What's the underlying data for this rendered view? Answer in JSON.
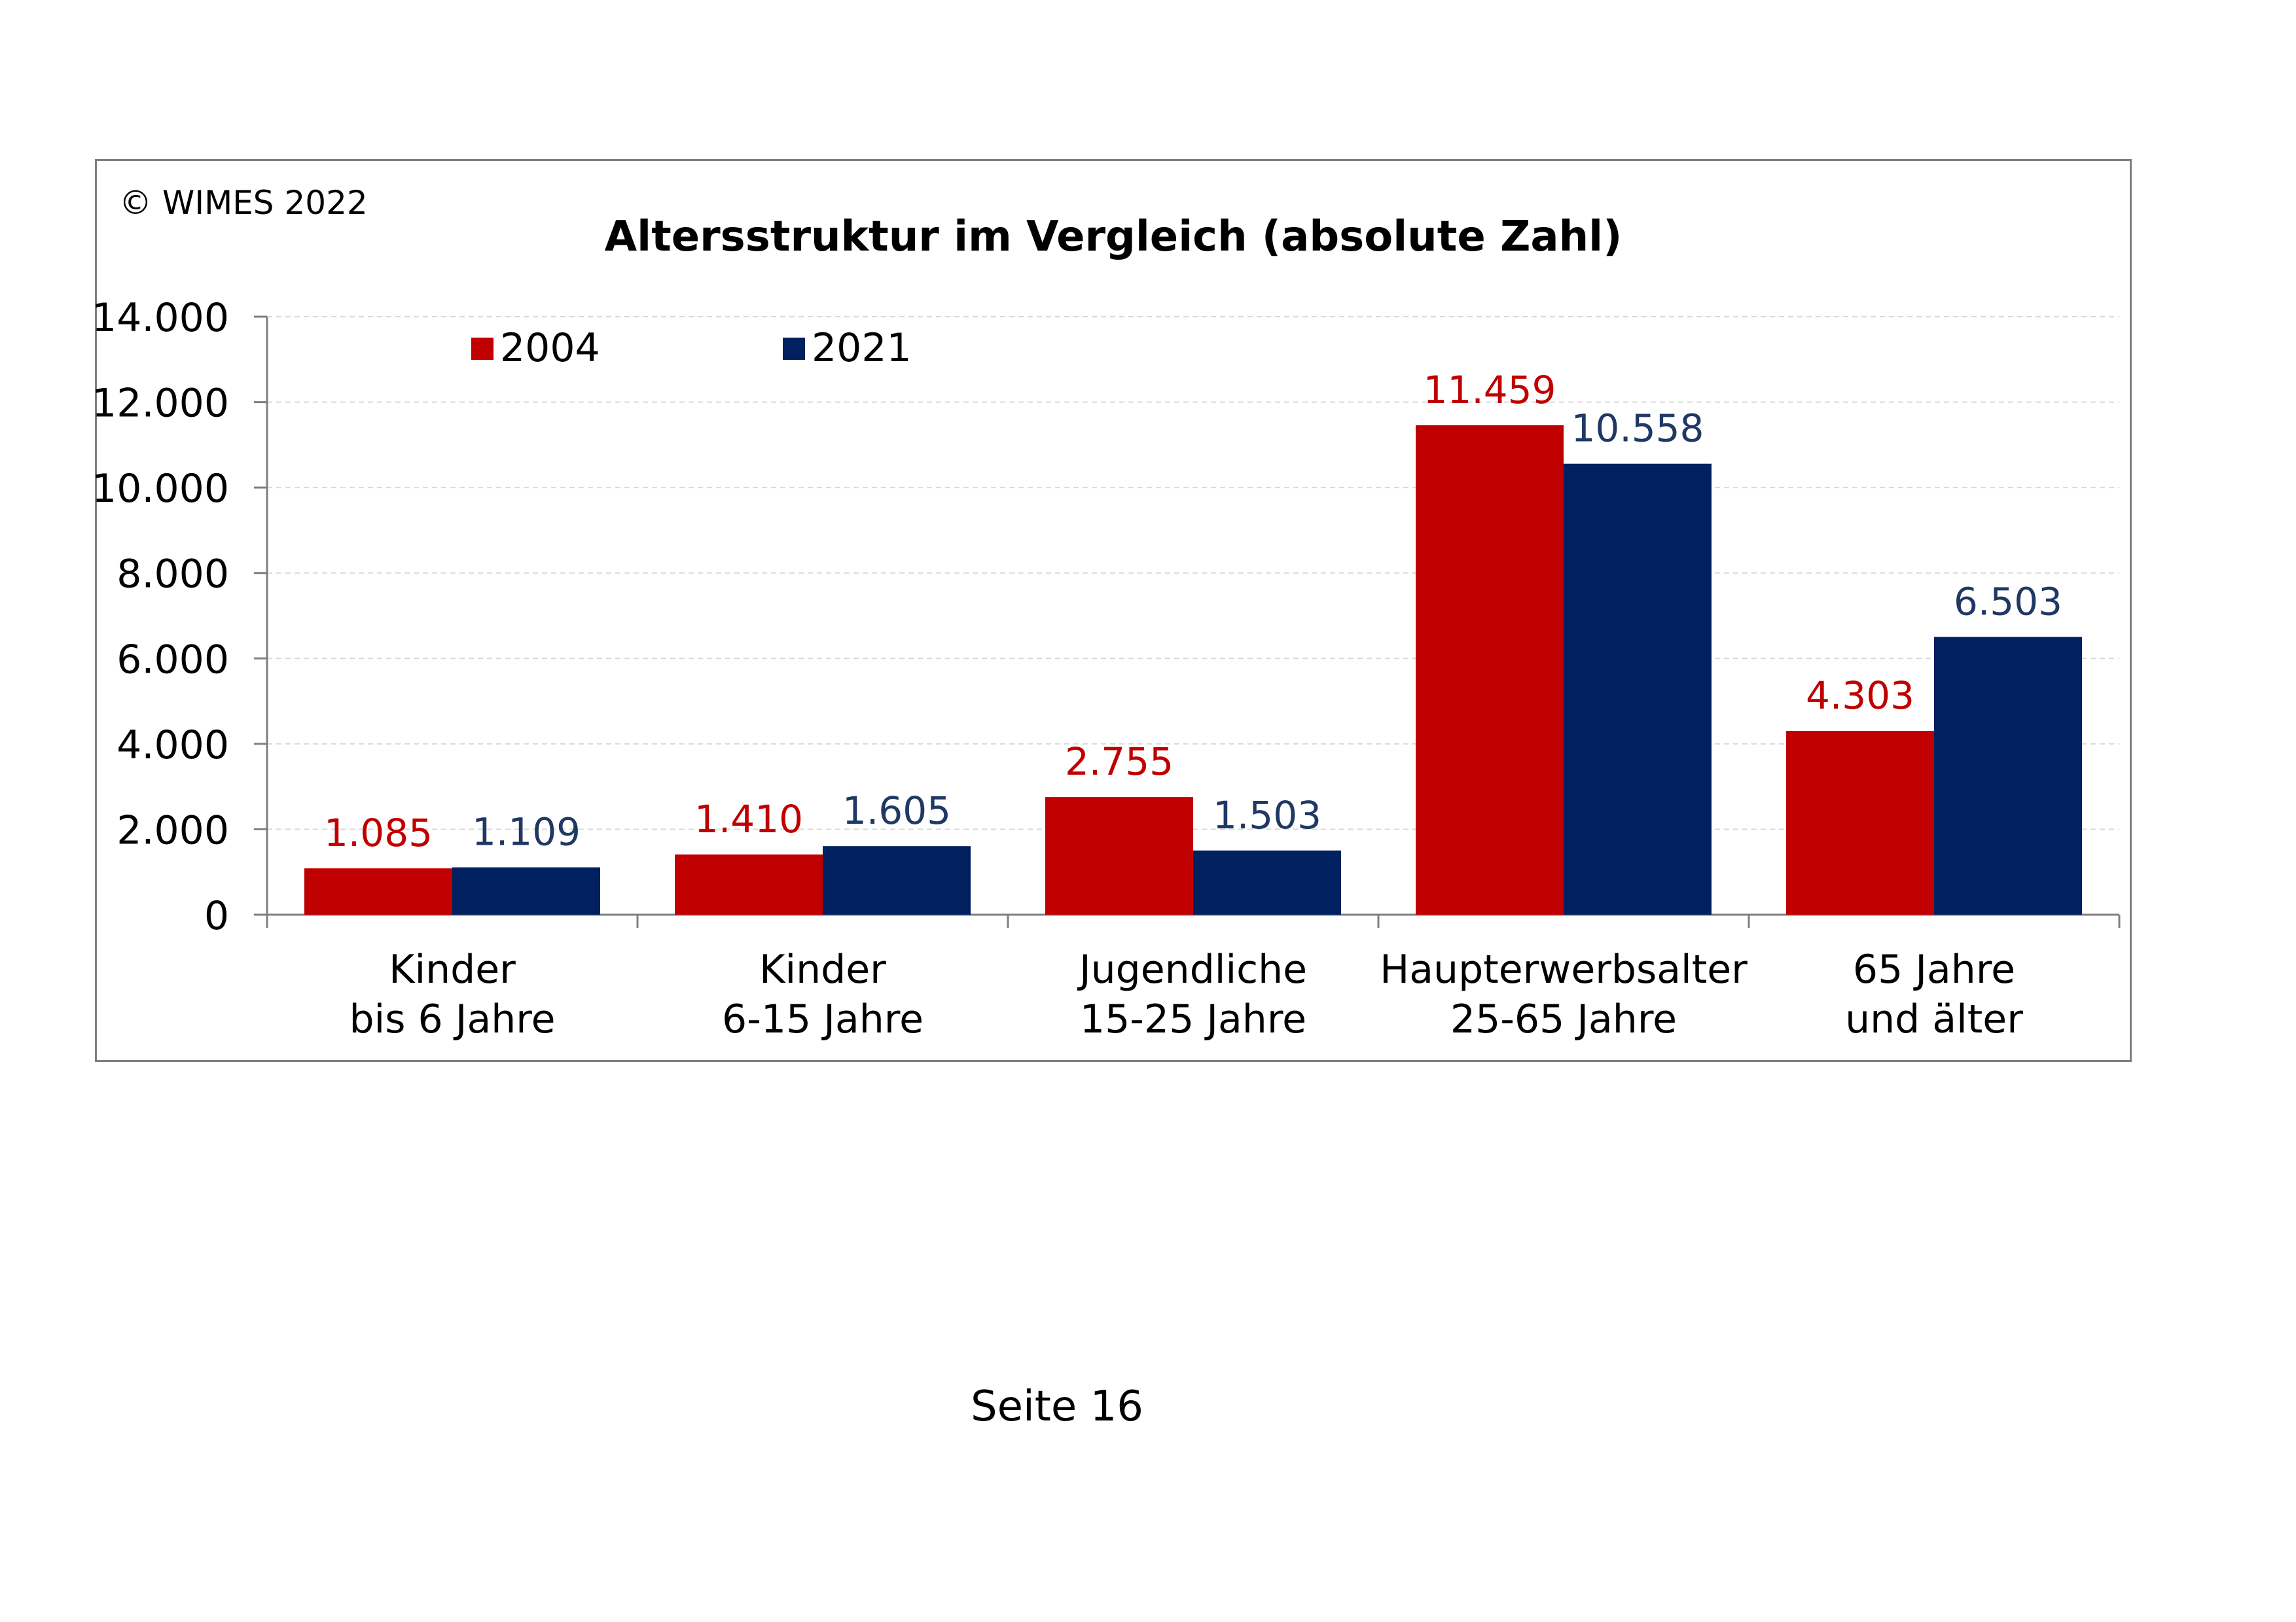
{
  "copyright": "© WIMES 2022",
  "page_label": "Seite 16",
  "colors": {
    "series_2004": "#c00000",
    "series_2021": "#002060",
    "label_2021": "#1f3864",
    "grid": "#d9d9d9",
    "axis": "#7f7f7f"
  },
  "chart_data": {
    "type": "bar",
    "title": "Altersstruktur im Vergleich (absolute Zahl)",
    "xlabel": "",
    "ylabel": "",
    "ylim": [
      0,
      14000
    ],
    "yticks": [
      0,
      2000,
      4000,
      6000,
      8000,
      10000,
      12000,
      14000
    ],
    "ytick_labels": [
      "0",
      "2.000",
      "4.000",
      "6.000",
      "8.000",
      "10.000",
      "12.000",
      "14.000"
    ],
    "grid": true,
    "legend_position": "top-left",
    "categories": [
      [
        "Kinder",
        "bis 6 Jahre"
      ],
      [
        "Kinder",
        "6-15 Jahre"
      ],
      [
        "Jugendliche",
        "15-25 Jahre"
      ],
      [
        "Haupterwerbsalter",
        "25-65 Jahre"
      ],
      [
        "65 Jahre",
        "und älter"
      ]
    ],
    "series": [
      {
        "name": "2004",
        "color": "#c00000",
        "values": [
          1085,
          1410,
          2755,
          11459,
          4303
        ],
        "labels": [
          "1.085",
          "1.410",
          "2.755",
          "11.459",
          "4.303"
        ]
      },
      {
        "name": "2021",
        "color": "#002060",
        "values": [
          1109,
          1605,
          1503,
          10558,
          6503
        ],
        "labels": [
          "1.109",
          "1.605",
          "1.503",
          "10.558",
          "6.503"
        ]
      }
    ]
  }
}
